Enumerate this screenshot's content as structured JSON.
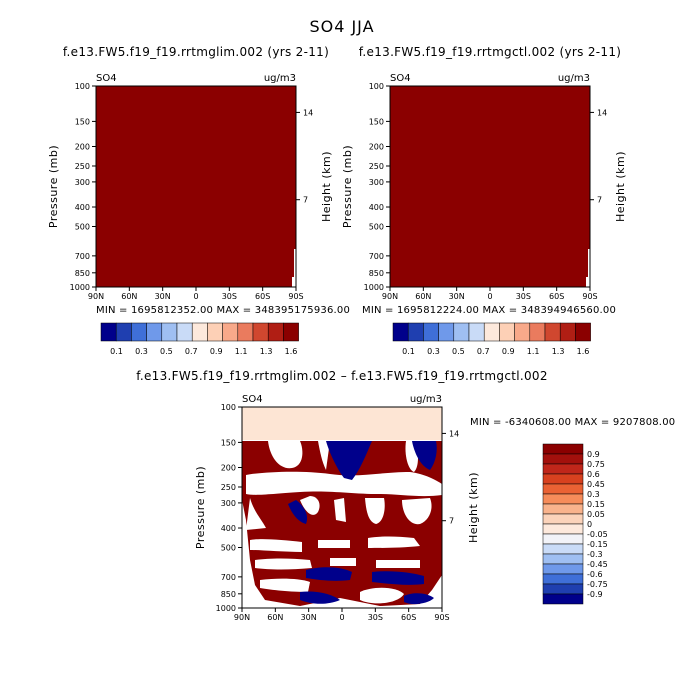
{
  "figure": {
    "title": "SO4 JJA"
  },
  "colors": {
    "dark_red": "#8b0000",
    "navy": "#00008b",
    "cream": "#fde5d4"
  },
  "chart_data": [
    {
      "type": "heatmap",
      "title": "f.e13.FW5.f19_f19.rrtmglim.002 (yrs 2-11)",
      "left_label": "SO4",
      "right_label": "ug/m3",
      "ylabel": "Pressure (mb)",
      "ylabel_right": "Height (km)",
      "y_ticks": [
        "100",
        "150",
        "200",
        "250",
        "300",
        "400",
        "500",
        "700",
        "850",
        "1000"
      ],
      "y_right_ticks": [
        "14",
        "7"
      ],
      "x_ticks": [
        "90N",
        "60N",
        "30N",
        "0",
        "30S",
        "60S",
        "90S"
      ],
      "stats": "MIN = 1695812352.00    MAX = 348395175936.00",
      "colorbar_labels": [
        "0.1",
        "0.3",
        "0.5",
        "0.7",
        "0.9",
        "1.1",
        "1.3",
        "1.6"
      ]
    },
    {
      "type": "heatmap",
      "title": "f.e13.FW5.f19_f19.rrtmgctl.002 (yrs 2-11)",
      "left_label": "SO4",
      "right_label": "ug/m3",
      "ylabel": "Pressure (mb)",
      "ylabel_right": "Height (km)",
      "y_ticks": [
        "100",
        "150",
        "200",
        "250",
        "300",
        "400",
        "500",
        "700",
        "850",
        "1000"
      ],
      "y_right_ticks": [
        "14",
        "7"
      ],
      "x_ticks": [
        "90N",
        "60N",
        "30N",
        "0",
        "30S",
        "60S",
        "90S"
      ],
      "stats": "MIN = 1695812224.00    MAX = 348394946560.00",
      "colorbar_labels": [
        "0.1",
        "0.3",
        "0.5",
        "0.7",
        "0.9",
        "1.1",
        "1.3",
        "1.6"
      ]
    },
    {
      "type": "heatmap",
      "title": "f.e13.FW5.f19_f19.rrtmglim.002 – f.e13.FW5.f19_f19.rrtmgctl.002",
      "left_label": "SO4",
      "right_label": "ug/m3",
      "ylabel": "Pressure (mb)",
      "ylabel_right": "Height (km)",
      "y_ticks": [
        "100",
        "150",
        "200",
        "250",
        "300",
        "400",
        "500",
        "700",
        "850",
        "1000"
      ],
      "y_right_ticks": [
        "14",
        "7"
      ],
      "x_ticks": [
        "90N",
        "60N",
        "30N",
        "0",
        "30S",
        "60S",
        "90S"
      ],
      "stats": "MIN = -6340608.00    MAX = 9207808.00",
      "colorbar_labels": [
        "0.9",
        "0.75",
        "0.6",
        "0.45",
        "0.3",
        "0.15",
        "0.05",
        "0",
        "-0.05",
        "-0.15",
        "-0.3",
        "-0.45",
        "-0.6",
        "-0.75",
        "-0.9"
      ]
    }
  ]
}
